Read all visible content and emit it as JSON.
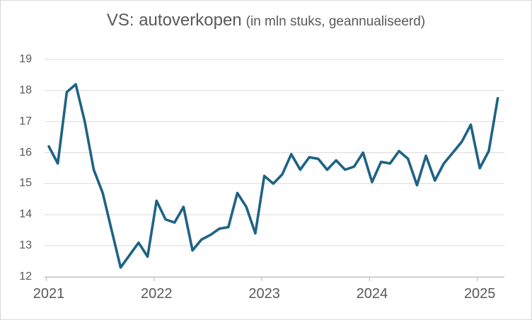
{
  "title": {
    "main": "VS: autoverkopen",
    "sub": "(in mln stuks, geannualiseerd)"
  },
  "chart_data": {
    "type": "line",
    "title": "VS: autoverkopen (in mln stuks, geannualiseerd)",
    "ylabel": "mln stuks (geannualiseerd)",
    "xlabel": "",
    "grid": "horizontal",
    "legend": "none",
    "ylim": [
      12,
      19
    ],
    "y_ticks": [
      12,
      13,
      14,
      15,
      16,
      17,
      18,
      19
    ],
    "x_tick_labels": [
      "2021",
      "2022",
      "2023",
      "2024",
      "2025"
    ],
    "x": [
      "2021-01",
      "2021-02",
      "2021-03",
      "2021-04",
      "2021-05",
      "2021-06",
      "2021-07",
      "2021-08",
      "2021-09",
      "2021-10",
      "2021-11",
      "2021-12",
      "2022-01",
      "2022-02",
      "2022-03",
      "2022-04",
      "2022-05",
      "2022-06",
      "2022-07",
      "2022-08",
      "2022-09",
      "2022-10",
      "2022-11",
      "2022-12",
      "2023-01",
      "2023-02",
      "2023-03",
      "2023-04",
      "2023-05",
      "2023-06",
      "2023-07",
      "2023-08",
      "2023-09",
      "2023-10",
      "2023-11",
      "2023-12",
      "2024-01",
      "2024-02",
      "2024-03",
      "2024-04",
      "2024-05",
      "2024-06",
      "2024-07",
      "2024-08",
      "2024-09",
      "2024-10",
      "2024-11",
      "2024-12",
      "2025-01",
      "2025-02",
      "2025-03"
    ],
    "series": [
      {
        "name": "VS autoverkopen",
        "values": [
          16.2,
          15.65,
          17.95,
          18.2,
          17.0,
          15.45,
          14.7,
          13.5,
          12.3,
          12.7,
          13.1,
          12.65,
          14.45,
          13.85,
          13.75,
          14.25,
          12.85,
          13.2,
          13.35,
          13.55,
          13.6,
          14.7,
          14.25,
          13.4,
          15.25,
          15.0,
          15.3,
          15.95,
          15.45,
          15.85,
          15.8,
          15.45,
          15.75,
          15.45,
          15.55,
          16.0,
          15.05,
          15.7,
          15.65,
          16.05,
          15.8,
          14.95,
          15.9,
          15.1,
          15.65,
          16.0,
          16.35,
          16.9,
          15.5,
          16.05,
          17.75
        ]
      }
    ],
    "colors": {
      "line": "#1E6384",
      "grid": "#D9D9D9",
      "axis": "#BFBFBF",
      "text": "#595959",
      "background": "#FFFFFF",
      "border": "#D9D9D9"
    }
  }
}
